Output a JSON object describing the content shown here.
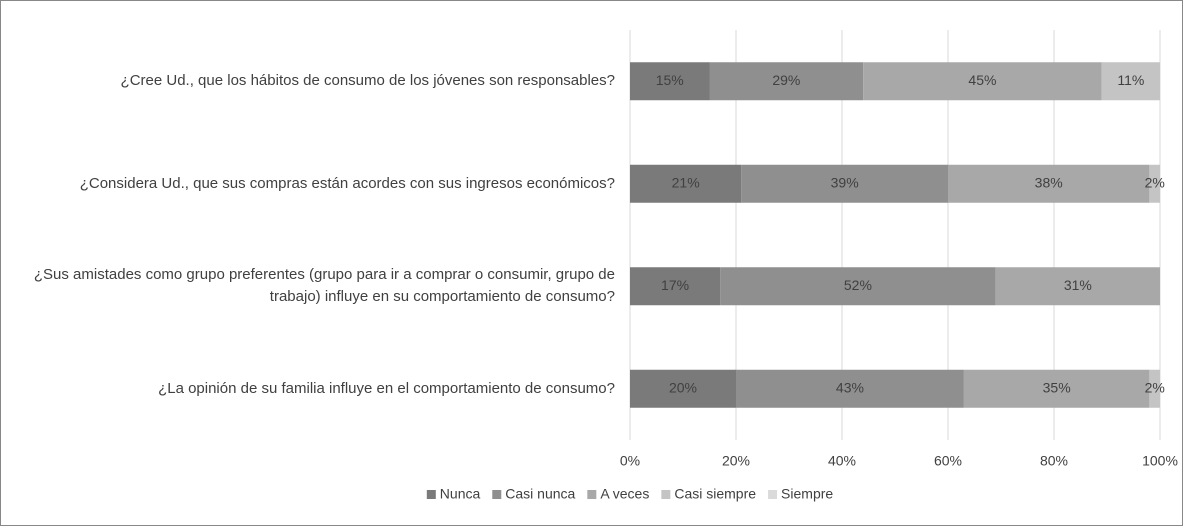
{
  "chart_data": {
    "type": "stacked-barh",
    "categories": [
      "¿Cree Ud., que los hábitos de consumo de los jóvenes son responsables?",
      "¿Considera Ud., que sus compras están acordes con sus ingresos económicos?",
      "¿Sus amistades como grupo preferentes (grupo para ir a comprar o consumir, grupo de trabajo) influye en su comportamiento de consumo?",
      "¿La opinión de su familia influye en el comportamiento de consumo?"
    ],
    "series": [
      {
        "name": "Nunca",
        "color": "#7a7a7a",
        "values": [
          15,
          21,
          17,
          20
        ],
        "value_labels": [
          "15%",
          "21%",
          "17%",
          "20%"
        ]
      },
      {
        "name": "Casi nunca",
        "color": "#8f8f8f",
        "values": [
          29,
          39,
          52,
          43
        ],
        "value_labels": [
          "29%",
          "39%",
          "52%",
          "43%"
        ]
      },
      {
        "name": "A veces",
        "color": "#a8a8a8",
        "values": [
          45,
          38,
          31,
          35
        ],
        "value_labels": [
          "45%",
          "38%",
          "31%",
          "35%"
        ]
      },
      {
        "name": "Casi siempre",
        "color": "#c4c4c4",
        "values": [
          11,
          2,
          null,
          2
        ],
        "value_labels": [
          "11%",
          "2%",
          null,
          "2%"
        ]
      },
      {
        "name": "Siempre",
        "color": "#dadada",
        "values": [
          null,
          null,
          null,
          null
        ],
        "value_labels": [
          null,
          null,
          null,
          null
        ]
      }
    ],
    "xlim": [
      0,
      100
    ],
    "xticks": [
      {
        "value": 0,
        "label": "0%"
      },
      {
        "value": 20,
        "label": "20%"
      },
      {
        "value": 40,
        "label": "40%"
      },
      {
        "value": 60,
        "label": "60%"
      },
      {
        "value": 80,
        "label": "80%"
      },
      {
        "value": 100,
        "label": "100%"
      }
    ],
    "grid": true,
    "legend": "bottom"
  }
}
